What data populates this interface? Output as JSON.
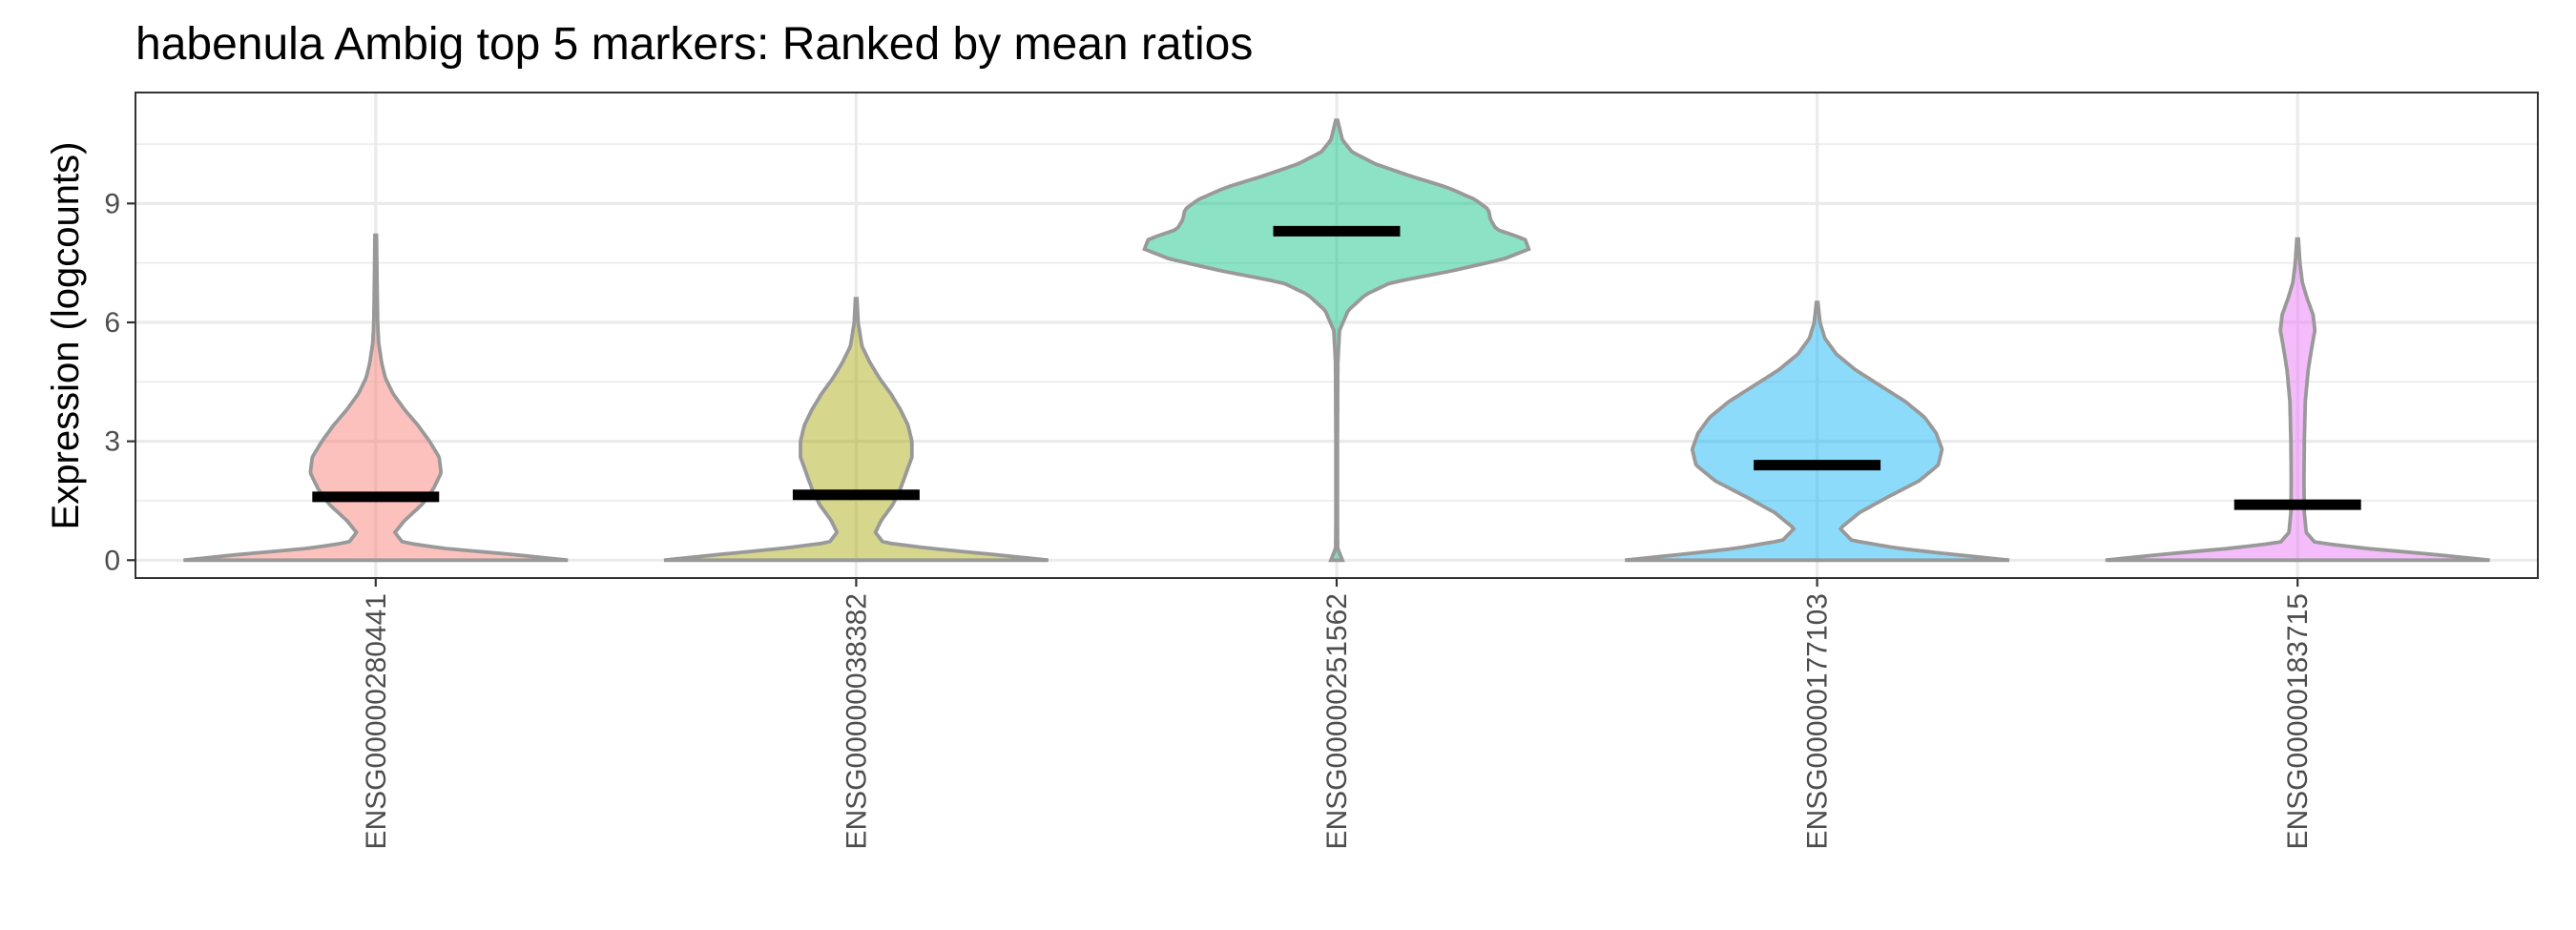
{
  "chart_data": {
    "type": "violin",
    "title": "habenula Ambig top 5 markers: Ranked by mean ratios",
    "xlabel": "",
    "ylabel": "Expression (logcounts)",
    "ylim": [
      -0.45,
      11.8
    ],
    "y_ticks": [
      0,
      3,
      6,
      9
    ],
    "y_minor_ticks": [
      1.5,
      4.5,
      7.5,
      10.5
    ],
    "grid": true,
    "legend": "none",
    "categories": [
      "ENSG00000280441",
      "ENSG00000038382",
      "ENSG00000251562",
      "ENSG00000177103",
      "ENSG00000183715"
    ],
    "series": [
      {
        "category": "ENSG00000280441",
        "color": "#F8766D",
        "mean": 1.6,
        "max": 8.2,
        "profile": [
          [
            0,
            1.0
          ],
          [
            0.15,
            0.7
          ],
          [
            0.3,
            0.35
          ],
          [
            0.45,
            0.14
          ],
          [
            0.7,
            0.1
          ],
          [
            1.0,
            0.15
          ],
          [
            1.4,
            0.24
          ],
          [
            1.8,
            0.3
          ],
          [
            2.2,
            0.34
          ],
          [
            2.6,
            0.33
          ],
          [
            3.0,
            0.28
          ],
          [
            3.4,
            0.22
          ],
          [
            3.8,
            0.15
          ],
          [
            4.2,
            0.09
          ],
          [
            4.6,
            0.05
          ],
          [
            5.0,
            0.03
          ],
          [
            5.5,
            0.015
          ],
          [
            6.0,
            0.01
          ],
          [
            7.0,
            0.007
          ],
          [
            8.2,
            0.004
          ]
        ]
      },
      {
        "category": "ENSG00000038382",
        "color": "#A3A500",
        "mean": 1.65,
        "max": 6.6,
        "profile": [
          [
            0,
            1.0
          ],
          [
            0.15,
            0.7
          ],
          [
            0.3,
            0.38
          ],
          [
            0.45,
            0.14
          ],
          [
            0.7,
            0.1
          ],
          [
            1.0,
            0.13
          ],
          [
            1.4,
            0.19
          ],
          [
            1.8,
            0.23
          ],
          [
            2.2,
            0.26
          ],
          [
            2.6,
            0.29
          ],
          [
            3.0,
            0.29
          ],
          [
            3.4,
            0.27
          ],
          [
            3.8,
            0.23
          ],
          [
            4.2,
            0.18
          ],
          [
            4.6,
            0.12
          ],
          [
            5.0,
            0.07
          ],
          [
            5.4,
            0.03
          ],
          [
            6.0,
            0.01
          ],
          [
            6.6,
            0.004
          ]
        ]
      },
      {
        "category": "ENSG00000251562",
        "color": "#00BF7D",
        "mean": 8.3,
        "max": 11.1,
        "profile": [
          [
            0,
            0.03
          ],
          [
            0.3,
            0.005
          ],
          [
            1.0,
            0.004
          ],
          [
            3.0,
            0.004
          ],
          [
            5.0,
            0.006
          ],
          [
            5.8,
            0.015
          ],
          [
            6.3,
            0.06
          ],
          [
            6.7,
            0.15
          ],
          [
            7.0,
            0.28
          ],
          [
            7.3,
            0.6
          ],
          [
            7.6,
            0.87
          ],
          [
            7.85,
            1.0
          ],
          [
            8.1,
            0.98
          ],
          [
            8.35,
            0.83
          ],
          [
            8.6,
            0.8
          ],
          [
            8.85,
            0.79
          ],
          [
            9.1,
            0.72
          ],
          [
            9.4,
            0.58
          ],
          [
            9.7,
            0.38
          ],
          [
            10.0,
            0.2
          ],
          [
            10.3,
            0.08
          ],
          [
            10.6,
            0.03
          ],
          [
            11.1,
            0.005
          ]
        ]
      },
      {
        "category": "ENSG00000177103",
        "color": "#00B0F6",
        "mean": 2.4,
        "max": 6.5,
        "profile": [
          [
            0,
            1.0
          ],
          [
            0.15,
            0.7
          ],
          [
            0.3,
            0.42
          ],
          [
            0.5,
            0.18
          ],
          [
            0.8,
            0.12
          ],
          [
            1.2,
            0.22
          ],
          [
            1.6,
            0.37
          ],
          [
            2.0,
            0.53
          ],
          [
            2.4,
            0.63
          ],
          [
            2.8,
            0.65
          ],
          [
            3.2,
            0.62
          ],
          [
            3.6,
            0.56
          ],
          [
            4.0,
            0.46
          ],
          [
            4.4,
            0.33
          ],
          [
            4.8,
            0.2
          ],
          [
            5.2,
            0.1
          ],
          [
            5.6,
            0.04
          ],
          [
            6.0,
            0.015
          ],
          [
            6.5,
            0.004
          ]
        ]
      },
      {
        "category": "ENSG00000183715",
        "color": "#E76BF3",
        "mean": 1.4,
        "max": 8.1,
        "profile": [
          [
            0,
            1.0
          ],
          [
            0.15,
            0.7
          ],
          [
            0.3,
            0.35
          ],
          [
            0.45,
            0.09
          ],
          [
            0.7,
            0.045
          ],
          [
            1.2,
            0.035
          ],
          [
            2.0,
            0.033
          ],
          [
            3.0,
            0.035
          ],
          [
            4.0,
            0.04
          ],
          [
            4.8,
            0.055
          ],
          [
            5.4,
            0.075
          ],
          [
            5.8,
            0.09
          ],
          [
            6.2,
            0.08
          ],
          [
            6.6,
            0.05
          ],
          [
            7.0,
            0.025
          ],
          [
            7.5,
            0.012
          ],
          [
            8.1,
            0.004
          ]
        ]
      }
    ]
  }
}
